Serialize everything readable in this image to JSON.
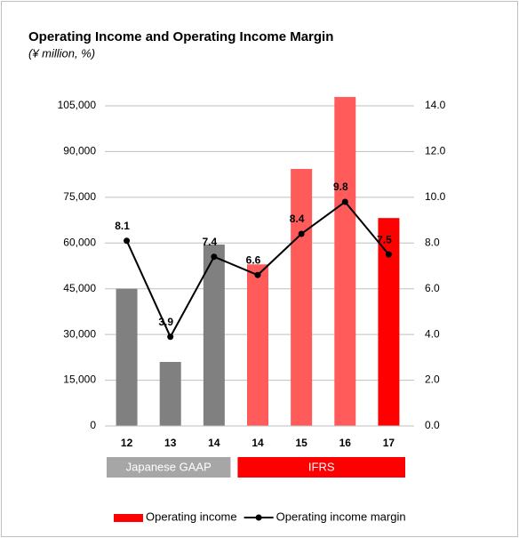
{
  "chart_data": {
    "type": "bar-line",
    "title": "Operating Income and Operating Income Margin",
    "subtitle": "(¥ million, %)",
    "categories": [
      "12",
      "13",
      "14",
      "14",
      "15",
      "16",
      "17"
    ],
    "series": [
      {
        "name": "Operating income",
        "type": "bar",
        "color": "#ff0000",
        "colors": [
          "#808080",
          "#808080",
          "#808080",
          "#ff5b5b",
          "#ff5b5b",
          "#ff5b5b",
          "#ff0000"
        ],
        "values": [
          45000,
          21000,
          59500,
          53000,
          84300,
          107900,
          68200
        ]
      },
      {
        "name": "Operating income margin",
        "type": "line",
        "axis": "y2",
        "color": "#000000",
        "values": [
          8.1,
          3.9,
          7.4,
          6.6,
          8.4,
          9.8,
          7.5
        ]
      }
    ],
    "groups": [
      {
        "label": "Japanese GAAP",
        "start": 0,
        "end": 2,
        "color": "#a6a6a6"
      },
      {
        "label": "IFRS",
        "start": 3,
        "end": 6,
        "color": "#ff0000"
      }
    ],
    "ylim": [
      0,
      105000
    ],
    "yticks": [
      0,
      {
        "value": 15000,
        "label": "15,000"
      },
      {
        "value": 30000,
        "label": "30,000"
      },
      {
        "value": 45000,
        "label": "45,000"
      },
      {
        "value": 60000,
        "label": "60,000"
      },
      {
        "value": 75000,
        "label": "75,000"
      },
      {
        "value": 90000,
        "label": "90,000"
      },
      {
        "value": 105000,
        "label": "105,000"
      }
    ],
    "y2lim": [
      0,
      14
    ],
    "y2ticks": [
      {
        "value": 0,
        "label": "0.0"
      },
      {
        "value": 2,
        "label": "2.0"
      },
      {
        "value": 4,
        "label": "4.0"
      },
      {
        "value": 6,
        "label": "6.0"
      },
      {
        "value": 8,
        "label": "8.0"
      },
      {
        "value": 10,
        "label": "10.0"
      },
      {
        "value": 12,
        "label": "12.0"
      },
      {
        "value": 14,
        "label": "14.0"
      }
    ],
    "grid": true,
    "legend": "bottom"
  }
}
